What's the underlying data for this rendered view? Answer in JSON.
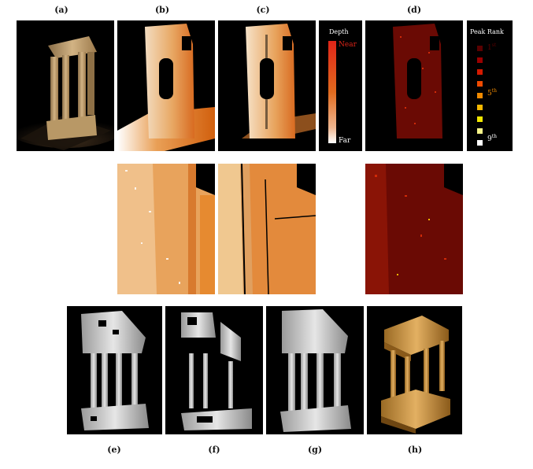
{
  "figure": {
    "top_labels": [
      "(a)",
      "(b)",
      "(c)",
      "(d)"
    ],
    "bottom_labels": [
      "(e)",
      "(f)",
      "(g)",
      "(h)"
    ]
  },
  "depth_legend": {
    "title": "Depth",
    "near": "Near",
    "far": "Far",
    "near_color": "#e02418",
    "far_color": "#ffffff"
  },
  "rank_legend": {
    "title": "Peak Rank",
    "first_label": "1",
    "first_suffix": "st",
    "fifth_label": "5",
    "fifth_suffix": "th",
    "ninth_label": "9",
    "ninth_suffix": "th",
    "swatches": [
      "#5a0000",
      "#9a0000",
      "#d51a00",
      "#ef4a00",
      "#f08a00",
      "#f5b800",
      "#f0e600",
      "#f6f48a",
      "#ffffff"
    ]
  }
}
